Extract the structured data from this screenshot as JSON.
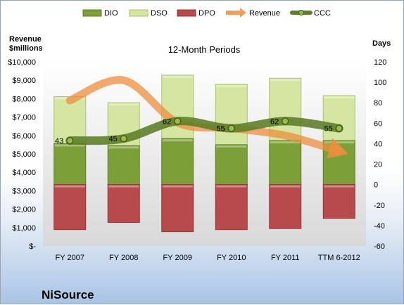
{
  "chart_data": {
    "type": "bar",
    "title": "12-Month Periods",
    "company": "NiSource",
    "left_axis_label": "Revenue $millions",
    "right_axis_label": "Days",
    "categories": [
      "FY 2007",
      "FY 2008",
      "FY 2009",
      "FY 2010",
      "FY 2011",
      "TTM 6-2012"
    ],
    "left_axis": {
      "min": 0,
      "max": 10000,
      "step": 1000,
      "tick_labels": [
        "$-",
        "$1,000",
        "$2,000",
        "$3,000",
        "$4,000",
        "$5,000",
        "$6,000",
        "$7,000",
        "$8,000",
        "$9,000",
        "$10,000"
      ]
    },
    "right_axis": {
      "min": -60,
      "max": 120,
      "step": 20
    },
    "series": [
      {
        "name": "DIO",
        "kind": "bar-days",
        "color": "#7d9f38",
        "ranges": [
          [
            0,
            40
          ],
          [
            0,
            38
          ],
          [
            0,
            45
          ],
          [
            0,
            39
          ],
          [
            0,
            43
          ],
          [
            0,
            43
          ]
        ]
      },
      {
        "name": "DSO",
        "kind": "bar-days",
        "color": "#d5e6a2",
        "ranges": [
          [
            40,
            86
          ],
          [
            38,
            80
          ],
          [
            45,
            107
          ],
          [
            39,
            98
          ],
          [
            43,
            104
          ],
          [
            43,
            87
          ]
        ]
      },
      {
        "name": "DPO",
        "kind": "bar-days",
        "color": "#b94a4c",
        "ranges": [
          [
            -44,
            0
          ],
          [
            -37,
            0
          ],
          [
            -46,
            0
          ],
          [
            -44,
            0
          ],
          [
            -43,
            0
          ],
          [
            -33,
            0
          ]
        ]
      },
      {
        "name": "Revenue",
        "kind": "line-revenue",
        "color": "#ee8e3c",
        "values": [
          7900,
          9000,
          6700,
          6400,
          6000,
          5150
        ]
      },
      {
        "name": "CCC",
        "kind": "line-days",
        "color": "#5f7f2a",
        "values": [
          43,
          45,
          62,
          55,
          62,
          55
        ],
        "labels": [
          "43",
          "45",
          "62",
          "55",
          "62",
          "55"
        ]
      }
    ],
    "legend_position": "top",
    "grid": false
  }
}
